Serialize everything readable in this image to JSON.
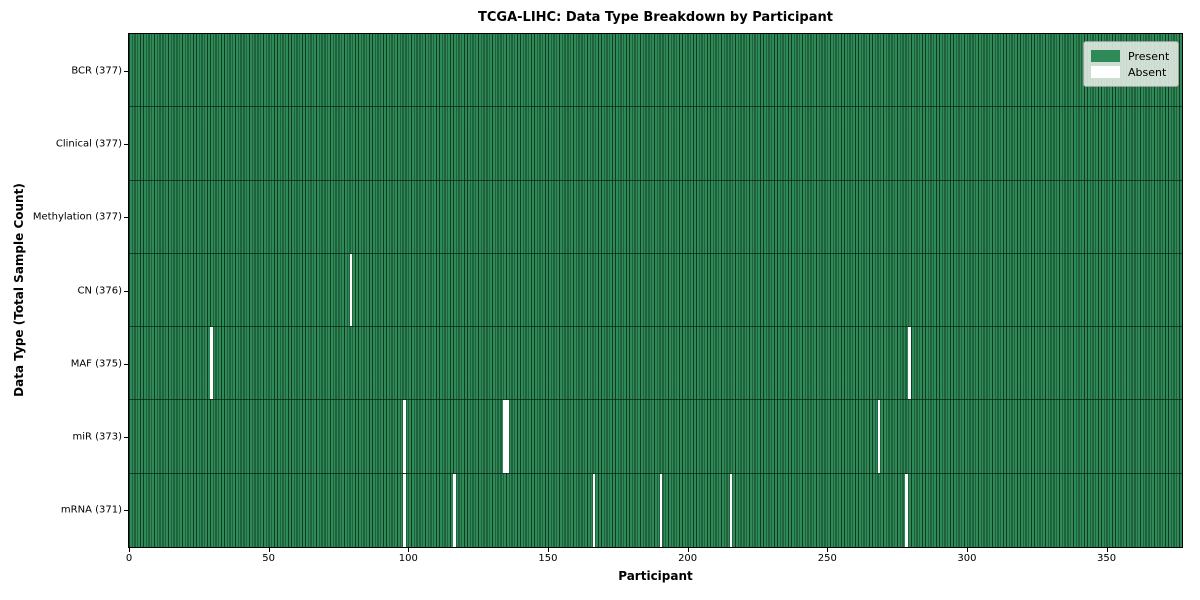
{
  "title": "TCGA-LIHC: Data Type Breakdown by Participant",
  "x_axis_title": "Participant",
  "y_axis_title": "Data Type (Total Sample Count)",
  "colors": {
    "present": "#2e8b57",
    "absent": "#ffffff",
    "cell_edge": "#0f3520",
    "legend_background": "#e6ece6"
  },
  "chart_data": {
    "type": "heatmap",
    "title": "TCGA-LIHC: Data Type Breakdown by Participant",
    "xlabel": "Participant",
    "ylabel": "Data Type (Total Sample Count)",
    "x_range": [
      0,
      377
    ],
    "x_ticks": [
      0,
      50,
      100,
      150,
      200,
      250,
      300,
      350
    ],
    "n_participants": 377,
    "grid": false,
    "legend_position": "upper right",
    "legend": [
      {
        "label": "Present",
        "color": "#2e8b57"
      },
      {
        "label": "Absent",
        "color": "#ffffff"
      }
    ],
    "rows": [
      {
        "data_type": "BCR",
        "label": "BCR (377)",
        "present_count": 377,
        "absent_count": 0,
        "absent_participants": []
      },
      {
        "data_type": "Clinical",
        "label": "Clinical (377)",
        "present_count": 377,
        "absent_count": 0,
        "absent_participants": []
      },
      {
        "data_type": "Methylation",
        "label": "Methylation (377)",
        "present_count": 377,
        "absent_count": 0,
        "absent_participants": []
      },
      {
        "data_type": "CN",
        "label": "CN (376)",
        "present_count": 376,
        "absent_count": 1,
        "absent_participants": [
          80
        ]
      },
      {
        "data_type": "MAF",
        "label": "MAF (375)",
        "present_count": 375,
        "absent_count": 2,
        "absent_participants": [
          30,
          280
        ]
      },
      {
        "data_type": "miR",
        "label": "miR (373)",
        "present_count": 373,
        "absent_count": 4,
        "absent_participants": [
          99,
          135,
          136,
          269
        ]
      },
      {
        "data_type": "mRNA",
        "label": "mRNA (371)",
        "present_count": 371,
        "absent_count": 6,
        "absent_participants": [
          99,
          117,
          167,
          191,
          216,
          279
        ]
      }
    ]
  }
}
